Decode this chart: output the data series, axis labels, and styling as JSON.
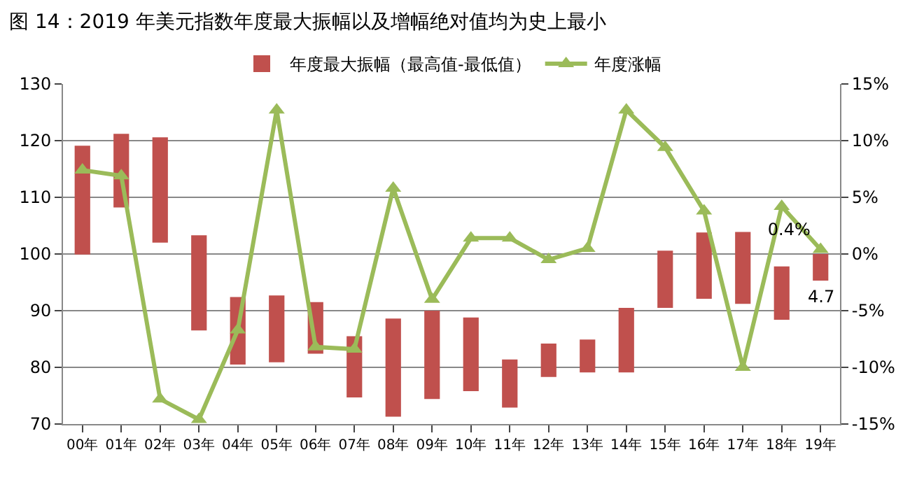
{
  "chart_data": {
    "type": "bar",
    "title": "图 14：2019 年美元指数年度最大振幅以及增幅绝对值均为史上最小",
    "categories": [
      "00年",
      "01年",
      "02年",
      "03年",
      "04年",
      "05年",
      "06年",
      "07年",
      "08年",
      "09年",
      "10年",
      "11年",
      "12年",
      "13年",
      "14年",
      "15年",
      "16年",
      "17年",
      "18年",
      "19年"
    ],
    "series": [
      {
        "name": "年度最大振幅（最高值-最低值）",
        "color": "#c0504d",
        "base": [
          99.9,
          108.2,
          102.0,
          86.5,
          80.5,
          80.9,
          82.4,
          74.7,
          71.3,
          74.4,
          75.8,
          72.9,
          78.3,
          79.1,
          79.1,
          90.5,
          92.1,
          91.2,
          88.4,
          95.3
        ],
        "values": [
          19.2,
          13.0,
          18.6,
          16.8,
          11.9,
          11.8,
          9.1,
          10.8,
          17.3,
          15.6,
          13.0,
          8.5,
          5.9,
          5.8,
          11.4,
          10.1,
          11.7,
          12.7,
          9.4,
          4.7
        ],
        "value_labels": [
          null,
          null,
          null,
          null,
          null,
          null,
          null,
          null,
          null,
          null,
          null,
          null,
          null,
          null,
          null,
          null,
          null,
          null,
          null,
          "4.7"
        ]
      },
      {
        "name": "年度涨幅",
        "type": "line",
        "axis": "y2",
        "color": "#9bbb59",
        "marker": "triangle",
        "values": [
          7.4,
          6.9,
          -12.8,
          -14.6,
          -6.7,
          12.7,
          -8.2,
          -8.4,
          5.8,
          -4.0,
          1.4,
          1.4,
          -0.5,
          0.5,
          12.7,
          9.4,
          3.8,
          -10.0,
          4.2,
          0.4
        ],
        "value_labels": [
          null,
          null,
          null,
          null,
          null,
          null,
          null,
          null,
          null,
          null,
          null,
          null,
          null,
          null,
          null,
          null,
          null,
          null,
          null,
          "0.4%"
        ]
      }
    ],
    "ylim": [
      70,
      130
    ],
    "yticks": [
      70,
      80,
      90,
      100,
      110,
      120,
      130
    ],
    "y2lim": [
      -15,
      15
    ],
    "y2ticks": [
      {
        "value": -15,
        "label": "-15%"
      },
      {
        "value": -10,
        "label": "-10%"
      },
      {
        "value": -5,
        "label": "-5%"
      },
      {
        "value": 0,
        "label": "0%"
      },
      {
        "value": 5,
        "label": "5%"
      },
      {
        "value": 10,
        "label": "10%"
      },
      {
        "value": 15,
        "label": "15%"
      }
    ],
    "grid": "y",
    "legend": "top"
  }
}
